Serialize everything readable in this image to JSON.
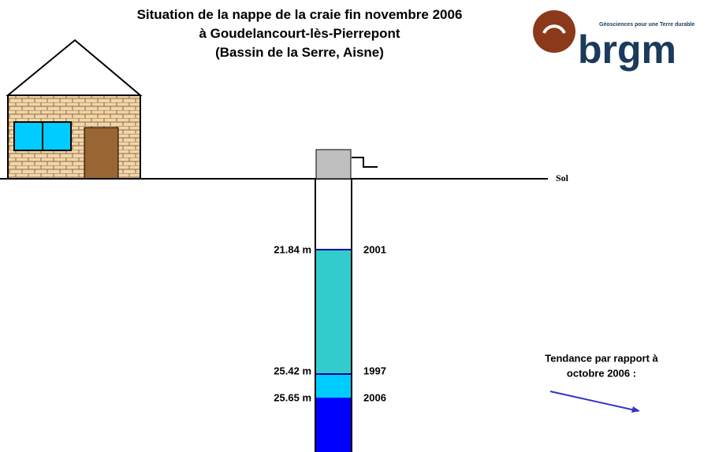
{
  "header": {
    "title_lines": [
      "Situation de la nappe de la craie fin novembre 2006",
      "à Goudelancourt-lès-Pierrepont",
      "(Bassin de la Serre, Aisne)"
    ]
  },
  "logo": {
    "name": "brgm",
    "tagline": "Géosciences pour une Terre durable"
  },
  "ground_label": "Sol",
  "levels": [
    {
      "depth": "21.84 m",
      "year": "2001"
    },
    {
      "depth": "25.42 m",
      "year": "1997"
    },
    {
      "depth": "25.65 m",
      "year": "2006"
    }
  ],
  "trend": {
    "lines": [
      "Tendance par rapport à",
      "octobre 2006 :"
    ]
  }
}
